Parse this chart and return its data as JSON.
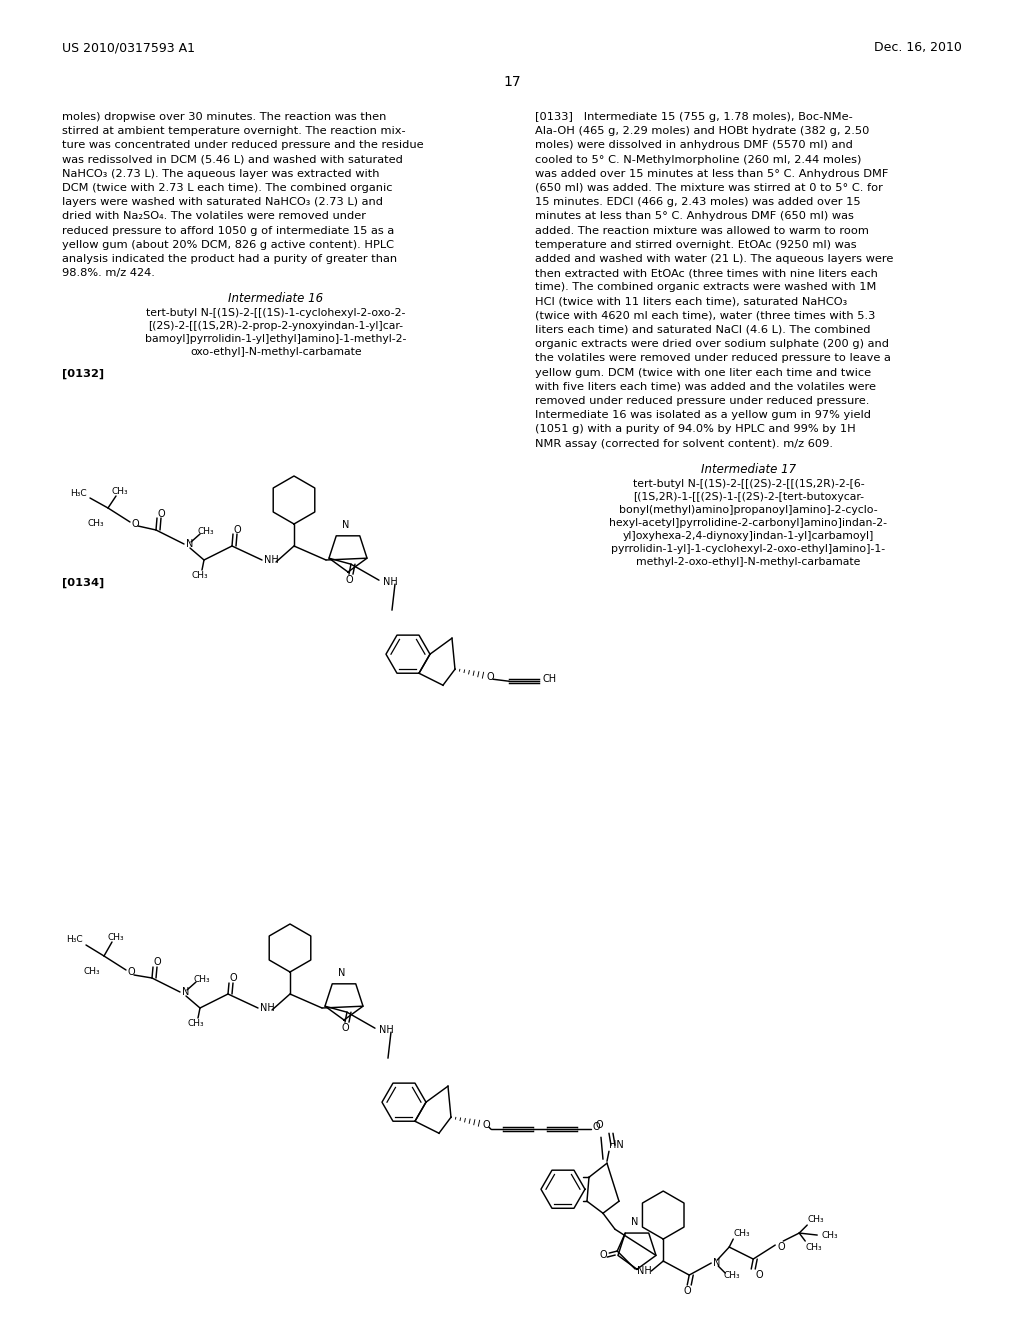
{
  "page_width": 10.24,
  "page_height": 13.2,
  "bg": "#ffffff",
  "header_left": "US 2010/0317593 A1",
  "header_right": "Dec. 16, 2010",
  "page_num": "17",
  "left_col": [
    "moles) dropwise over 30 minutes. The reaction was then",
    "stirred at ambient temperature overnight. The reaction mix-",
    "ture was concentrated under reduced pressure and the residue",
    "was redissolved in DCM (5.46 L) and washed with saturated",
    "NaHCO₃ (2.73 L). The aqueous layer was extracted with",
    "DCM (twice with 2.73 L each time). The combined organic",
    "layers were washed with saturated NaHCO₃ (2.73 L) and",
    "dried with Na₂SO₄. The volatiles were removed under",
    "reduced pressure to afford 1050 g of intermediate 15 as a",
    "yellow gum (about 20% DCM, 826 g active content). HPLC",
    "analysis indicated the product had a purity of greater than",
    "98.8%. m/z 424."
  ],
  "int16_title": "Intermediate 16",
  "int16_iupac": [
    "tert-butyl N-[(1S)-2-[[(1S)-1-cyclohexyl-2-oxo-2-",
    "[(2S)-2-[[(1S,2R)-2-prop-2-ynoxyindan-1-yl]car-",
    "bamoyl]pyrrolidin-1-yl]ethyl]amino]-1-methyl-2-",
    "oxo-ethyl]-N-methyl-carbamate"
  ],
  "para132": "[0132]",
  "right_col": [
    "[0133]   Intermediate 15 (755 g, 1.78 moles), Boc-NMe-",
    "Ala-OH (465 g, 2.29 moles) and HOBt hydrate (382 g, 2.50",
    "moles) were dissolved in anhydrous DMF (5570 ml) and",
    "cooled to 5° C. N-Methylmorpholine (260 ml, 2.44 moles)",
    "was added over 15 minutes at less than 5° C. Anhydrous DMF",
    "(650 ml) was added. The mixture was stirred at 0 to 5° C. for",
    "15 minutes. EDCI (466 g, 2.43 moles) was added over 15",
    "minutes at less than 5° C. Anhydrous DMF (650 ml) was",
    "added. The reaction mixture was allowed to warm to room",
    "temperature and stirred overnight. EtOAc (9250 ml) was",
    "added and washed with water (21 L). The aqueous layers were",
    "then extracted with EtOAc (three times with nine liters each",
    "time). The combined organic extracts were washed with 1M",
    "HCl (twice with 11 liters each time), saturated NaHCO₃",
    "(twice with 4620 ml each time), water (three times with 5.3",
    "liters each time) and saturated NaCl (4.6 L). The combined",
    "organic extracts were dried over sodium sulphate (200 g) and",
    "the volatiles were removed under reduced pressure to leave a",
    "yellow gum. DCM (twice with one liter each time and twice",
    "with five liters each time) was added and the volatiles were",
    "removed under reduced pressure under reduced pressure.",
    "Intermediate 16 was isolated as a yellow gum in 97% yield",
    "(1051 g) with a purity of 94.0% by HPLC and 99% by 1H",
    "NMR assay (corrected for solvent content). m/z 609."
  ],
  "int17_title": "Intermediate 17",
  "int17_iupac": [
    "tert-butyl N-[(1S)-2-[[(2S)-2-[[(1S,2R)-2-[6-",
    "[(1S,2R)-1-[[(2S)-1-[(2S)-2-[tert-butoxycar-",
    "bonyl(methyl)amino]propanoyl]amino]-2-cyclo-",
    "hexyl-acetyl]pyrrolidine-2-carbonyl]amino]indan-2-",
    "yl]oxyhexа-2,4-diynoxy]indan-1-yl]carbamoyl]",
    "pyrrolidin-1-yl]-1-cyclohexyl-2-oxo-ethyl]amino]-1-",
    "methyl-2-oxo-ethyl]-N-methyl-carbamate"
  ],
  "para134": "[0134]"
}
